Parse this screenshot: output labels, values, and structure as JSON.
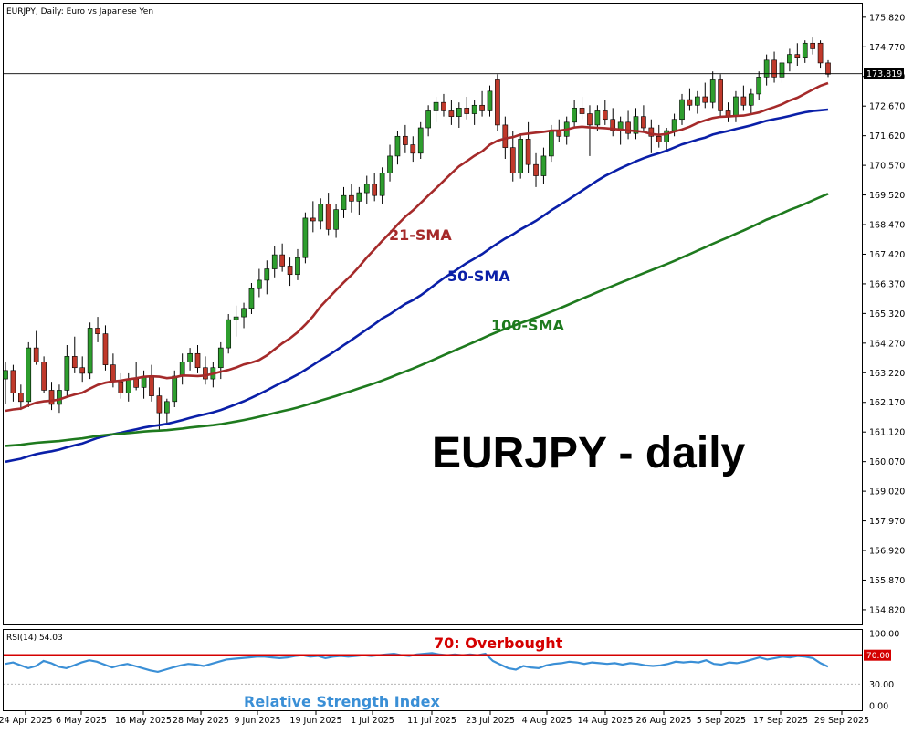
{
  "header": {
    "symbol_line": "EURJPY, Daily:  Euro vs Japanese Yen"
  },
  "chart_title_overlay": "EURJPY - daily",
  "price_axis": {
    "ticks": [
      "175.820",
      "174.770",
      "173.720",
      "172.670",
      "171.620",
      "170.570",
      "169.520",
      "168.470",
      "167.420",
      "166.370",
      "165.320",
      "164.270",
      "163.220",
      "162.170",
      "161.120",
      "160.070",
      "159.020",
      "157.970",
      "156.920",
      "155.870",
      "154.820"
    ],
    "current_price_label": "173.819"
  },
  "time_axis": {
    "labels": [
      "24 Apr 2025",
      "6 May 2025",
      "16 May 2025",
      "28 May 2025",
      "9 Jun 2025",
      "19 Jun 2025",
      "1 Jul 2025",
      "11 Jul 2025",
      "23 Jul 2025",
      "4 Aug 2025",
      "14 Aug 2025",
      "26 Aug 2025",
      "5 Sep 2025",
      "17 Sep 2025",
      "29 Sep 2025"
    ]
  },
  "annotations": {
    "sma21": "21-SMA",
    "sma50": "50-SMA",
    "sma100": "100-SMA",
    "overbought": "70: Overbought",
    "rsi_caption": "Relative Strength Index"
  },
  "rsi_panel": {
    "header": "RSI(14) 54.03",
    "ticks": [
      "100.00",
      "30.00",
      "0.00"
    ],
    "level_label": "70.00"
  },
  "colors": {
    "bull": "#2e9e2e",
    "bear": "#c0392b",
    "sma21": "#a52a2a",
    "sma50": "#0a1fa8",
    "sma100": "#1e7a1e",
    "rsi": "#3a8fd6",
    "overbought": "#d40000",
    "rsi_caption": "#3a8fd6"
  },
  "chart_data": {
    "type": "candlestick",
    "title": "EURJPY - daily",
    "symbol": "EURJPY",
    "timeframe": "Daily",
    "ylim": [
      154.3,
      176.3
    ],
    "candles": [
      {
        "o": 163.0,
        "h": 163.6,
        "l": 162.1,
        "c": 163.3
      },
      {
        "o": 163.3,
        "h": 163.5,
        "l": 162.2,
        "c": 162.5
      },
      {
        "o": 162.5,
        "h": 162.8,
        "l": 161.9,
        "c": 162.2
      },
      {
        "o": 162.2,
        "h": 164.3,
        "l": 162.0,
        "c": 164.1
      },
      {
        "o": 164.1,
        "h": 164.7,
        "l": 163.5,
        "c": 163.6
      },
      {
        "o": 163.6,
        "h": 163.8,
        "l": 162.5,
        "c": 162.6
      },
      {
        "o": 162.6,
        "h": 162.9,
        "l": 161.9,
        "c": 162.1
      },
      {
        "o": 162.1,
        "h": 162.8,
        "l": 161.8,
        "c": 162.6
      },
      {
        "o": 162.6,
        "h": 164.2,
        "l": 162.4,
        "c": 163.8
      },
      {
        "o": 163.8,
        "h": 164.5,
        "l": 163.2,
        "c": 163.4
      },
      {
        "o": 163.4,
        "h": 163.8,
        "l": 162.9,
        "c": 163.2
      },
      {
        "o": 163.2,
        "h": 165.0,
        "l": 163.0,
        "c": 164.8
      },
      {
        "o": 164.8,
        "h": 165.2,
        "l": 164.3,
        "c": 164.6
      },
      {
        "o": 164.6,
        "h": 164.9,
        "l": 163.3,
        "c": 163.5
      },
      {
        "o": 163.5,
        "h": 163.9,
        "l": 162.7,
        "c": 162.9
      },
      {
        "o": 162.9,
        "h": 163.2,
        "l": 162.3,
        "c": 162.5
      },
      {
        "o": 162.5,
        "h": 163.2,
        "l": 162.2,
        "c": 163.0
      },
      {
        "o": 163.0,
        "h": 163.6,
        "l": 162.6,
        "c": 162.7
      },
      {
        "o": 162.7,
        "h": 163.3,
        "l": 162.3,
        "c": 163.1
      },
      {
        "o": 163.1,
        "h": 163.5,
        "l": 162.2,
        "c": 162.4
      },
      {
        "o": 162.4,
        "h": 162.7,
        "l": 161.2,
        "c": 161.8
      },
      {
        "o": 161.8,
        "h": 162.3,
        "l": 161.4,
        "c": 162.2
      },
      {
        "o": 162.2,
        "h": 163.3,
        "l": 162.0,
        "c": 163.1
      },
      {
        "o": 163.1,
        "h": 163.9,
        "l": 162.8,
        "c": 163.6
      },
      {
        "o": 163.6,
        "h": 164.1,
        "l": 163.3,
        "c": 163.9
      },
      {
        "o": 163.9,
        "h": 164.2,
        "l": 163.2,
        "c": 163.4
      },
      {
        "o": 163.4,
        "h": 163.8,
        "l": 162.8,
        "c": 163.0
      },
      {
        "o": 163.0,
        "h": 163.6,
        "l": 162.7,
        "c": 163.4
      },
      {
        "o": 163.4,
        "h": 164.3,
        "l": 163.0,
        "c": 164.1
      },
      {
        "o": 164.1,
        "h": 165.3,
        "l": 163.9,
        "c": 165.1
      },
      {
        "o": 165.1,
        "h": 165.6,
        "l": 164.5,
        "c": 165.2
      },
      {
        "o": 165.2,
        "h": 165.7,
        "l": 164.8,
        "c": 165.5
      },
      {
        "o": 165.5,
        "h": 166.4,
        "l": 165.3,
        "c": 166.2
      },
      {
        "o": 166.2,
        "h": 166.9,
        "l": 165.9,
        "c": 166.5
      },
      {
        "o": 166.5,
        "h": 167.2,
        "l": 166.0,
        "c": 166.9
      },
      {
        "o": 166.9,
        "h": 167.7,
        "l": 166.6,
        "c": 167.4
      },
      {
        "o": 167.4,
        "h": 167.8,
        "l": 166.8,
        "c": 167.0
      },
      {
        "o": 167.0,
        "h": 167.3,
        "l": 166.3,
        "c": 166.7
      },
      {
        "o": 166.7,
        "h": 167.6,
        "l": 166.5,
        "c": 167.3
      },
      {
        "o": 167.3,
        "h": 168.9,
        "l": 167.1,
        "c": 168.7
      },
      {
        "o": 168.7,
        "h": 169.3,
        "l": 168.2,
        "c": 168.6
      },
      {
        "o": 168.6,
        "h": 169.4,
        "l": 168.3,
        "c": 169.2
      },
      {
        "o": 169.2,
        "h": 169.6,
        "l": 168.1,
        "c": 168.3
      },
      {
        "o": 168.3,
        "h": 169.2,
        "l": 168.0,
        "c": 169.0
      },
      {
        "o": 169.0,
        "h": 169.8,
        "l": 168.7,
        "c": 169.5
      },
      {
        "o": 169.5,
        "h": 169.9,
        "l": 168.9,
        "c": 169.3
      },
      {
        "o": 169.3,
        "h": 169.8,
        "l": 168.8,
        "c": 169.6
      },
      {
        "o": 169.6,
        "h": 170.2,
        "l": 169.2,
        "c": 169.9
      },
      {
        "o": 169.9,
        "h": 170.3,
        "l": 169.3,
        "c": 169.5
      },
      {
        "o": 169.5,
        "h": 170.5,
        "l": 169.2,
        "c": 170.3
      },
      {
        "o": 170.3,
        "h": 171.3,
        "l": 170.0,
        "c": 170.9
      },
      {
        "o": 170.9,
        "h": 171.8,
        "l": 170.6,
        "c": 171.6
      },
      {
        "o": 171.6,
        "h": 172.0,
        "l": 171.0,
        "c": 171.3
      },
      {
        "o": 171.3,
        "h": 171.6,
        "l": 170.7,
        "c": 171.0
      },
      {
        "o": 171.0,
        "h": 172.1,
        "l": 170.8,
        "c": 171.9
      },
      {
        "o": 171.9,
        "h": 172.7,
        "l": 171.6,
        "c": 172.5
      },
      {
        "o": 172.5,
        "h": 173.0,
        "l": 172.1,
        "c": 172.8
      },
      {
        "o": 172.8,
        "h": 173.1,
        "l": 172.3,
        "c": 172.5
      },
      {
        "o": 172.5,
        "h": 172.9,
        "l": 172.0,
        "c": 172.3
      },
      {
        "o": 172.3,
        "h": 172.8,
        "l": 171.9,
        "c": 172.6
      },
      {
        "o": 172.6,
        "h": 173.0,
        "l": 172.2,
        "c": 172.4
      },
      {
        "o": 172.4,
        "h": 172.9,
        "l": 172.0,
        "c": 172.7
      },
      {
        "o": 172.7,
        "h": 173.2,
        "l": 172.3,
        "c": 172.5
      },
      {
        "o": 172.5,
        "h": 173.4,
        "l": 172.3,
        "c": 173.2
      },
      {
        "o": 173.6,
        "h": 173.8,
        "l": 171.8,
        "c": 172.0
      },
      {
        "o": 172.0,
        "h": 172.3,
        "l": 170.8,
        "c": 171.2
      },
      {
        "o": 171.2,
        "h": 171.8,
        "l": 170.0,
        "c": 170.3
      },
      {
        "o": 170.3,
        "h": 171.7,
        "l": 170.1,
        "c": 171.5
      },
      {
        "o": 171.5,
        "h": 172.1,
        "l": 170.3,
        "c": 170.6
      },
      {
        "o": 170.6,
        "h": 171.0,
        "l": 169.8,
        "c": 170.2
      },
      {
        "o": 170.2,
        "h": 171.2,
        "l": 169.9,
        "c": 170.9
      },
      {
        "o": 170.9,
        "h": 172.0,
        "l": 170.7,
        "c": 171.8
      },
      {
        "o": 171.8,
        "h": 172.2,
        "l": 171.4,
        "c": 171.6
      },
      {
        "o": 171.6,
        "h": 172.3,
        "l": 171.3,
        "c": 172.1
      },
      {
        "o": 172.1,
        "h": 172.9,
        "l": 171.9,
        "c": 172.6
      },
      {
        "o": 172.6,
        "h": 173.0,
        "l": 172.2,
        "c": 172.4
      },
      {
        "o": 172.4,
        "h": 172.7,
        "l": 170.9,
        "c": 172.0
      },
      {
        "o": 172.0,
        "h": 172.7,
        "l": 171.8,
        "c": 172.5
      },
      {
        "o": 172.5,
        "h": 172.9,
        "l": 172.0,
        "c": 172.2
      },
      {
        "o": 172.2,
        "h": 172.6,
        "l": 171.6,
        "c": 171.8
      },
      {
        "o": 171.8,
        "h": 172.3,
        "l": 171.3,
        "c": 172.1
      },
      {
        "o": 172.1,
        "h": 172.5,
        "l": 171.5,
        "c": 171.7
      },
      {
        "o": 171.7,
        "h": 172.6,
        "l": 171.5,
        "c": 172.3
      },
      {
        "o": 172.3,
        "h": 172.7,
        "l": 171.8,
        "c": 171.9
      },
      {
        "o": 171.9,
        "h": 172.2,
        "l": 171.0,
        "c": 171.6
      },
      {
        "o": 171.6,
        "h": 172.0,
        "l": 171.2,
        "c": 171.4
      },
      {
        "o": 171.4,
        "h": 171.9,
        "l": 171.1,
        "c": 171.8
      },
      {
        "o": 171.8,
        "h": 172.4,
        "l": 171.6,
        "c": 172.2
      },
      {
        "o": 172.2,
        "h": 173.1,
        "l": 172.0,
        "c": 172.9
      },
      {
        "o": 172.9,
        "h": 173.3,
        "l": 172.5,
        "c": 172.7
      },
      {
        "o": 172.7,
        "h": 173.2,
        "l": 172.4,
        "c": 173.0
      },
      {
        "o": 173.0,
        "h": 173.5,
        "l": 172.6,
        "c": 172.8
      },
      {
        "o": 172.8,
        "h": 173.9,
        "l": 172.6,
        "c": 173.6
      },
      {
        "o": 173.6,
        "h": 173.8,
        "l": 172.3,
        "c": 172.5
      },
      {
        "o": 172.5,
        "h": 172.8,
        "l": 172.1,
        "c": 172.3
      },
      {
        "o": 172.3,
        "h": 173.2,
        "l": 172.1,
        "c": 173.0
      },
      {
        "o": 173.0,
        "h": 173.4,
        "l": 172.5,
        "c": 172.7
      },
      {
        "o": 172.7,
        "h": 173.3,
        "l": 172.4,
        "c": 173.1
      },
      {
        "o": 173.1,
        "h": 173.9,
        "l": 172.9,
        "c": 173.7
      },
      {
        "o": 173.7,
        "h": 174.5,
        "l": 173.4,
        "c": 174.3
      },
      {
        "o": 174.3,
        "h": 174.6,
        "l": 173.5,
        "c": 173.7
      },
      {
        "o": 173.7,
        "h": 174.4,
        "l": 173.5,
        "c": 174.2
      },
      {
        "o": 174.2,
        "h": 174.7,
        "l": 173.9,
        "c": 174.5
      },
      {
        "o": 174.5,
        "h": 174.9,
        "l": 174.1,
        "c": 174.4
      },
      {
        "o": 174.4,
        "h": 175.0,
        "l": 174.2,
        "c": 174.9
      },
      {
        "o": 174.9,
        "h": 175.1,
        "l": 174.5,
        "c": 174.7
      },
      {
        "o": 174.9,
        "h": 175.0,
        "l": 174.0,
        "c": 174.2
      },
      {
        "o": 174.2,
        "h": 174.3,
        "l": 173.7,
        "c": 173.8
      }
    ],
    "rsi": {
      "name": "RSI(14)",
      "last": 54.03,
      "level": 70,
      "ylim": [
        0,
        100
      ],
      "values": [
        58,
        60,
        56,
        52,
        55,
        62,
        59,
        54,
        52,
        56,
        60,
        63,
        61,
        57,
        53,
        56,
        58,
        55,
        52,
        49,
        47,
        50,
        53,
        56,
        58,
        57,
        55,
        58,
        61,
        64,
        65,
        66,
        67,
        68,
        68,
        67,
        66,
        67,
        69,
        70,
        68,
        69,
        66,
        68,
        69,
        68,
        69,
        70,
        69,
        70,
        71,
        72,
        70,
        69,
        71,
        72,
        73,
        71,
        70,
        71,
        70,
        71,
        70,
        72,
        62,
        57,
        52,
        50,
        55,
        53,
        52,
        56,
        58,
        59,
        61,
        60,
        58,
        60,
        59,
        58,
        59,
        57,
        59,
        58,
        56,
        55,
        56,
        58,
        61,
        60,
        61,
        60,
        63,
        58,
        57,
        60,
        59,
        61,
        64,
        67,
        64,
        66,
        68,
        67,
        69,
        68,
        66,
        59,
        54
      ]
    },
    "series": [
      {
        "name": "21-SMA"
      },
      {
        "name": "50-SMA"
      },
      {
        "name": "100-SMA"
      }
    ]
  }
}
